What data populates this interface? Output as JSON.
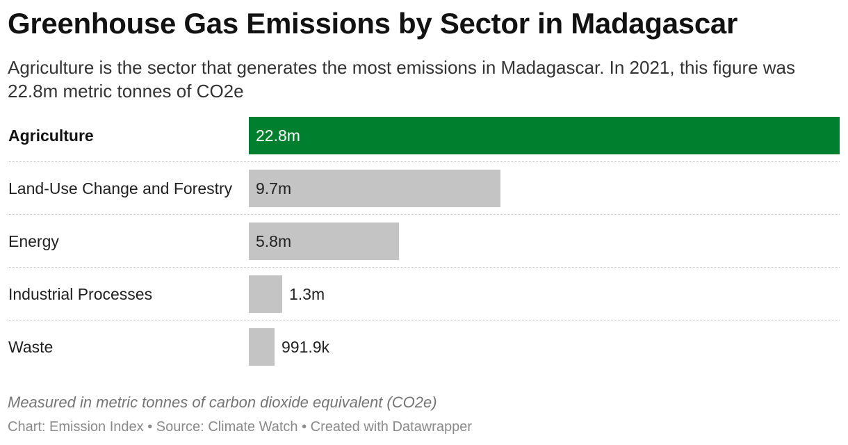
{
  "title": "Greenhouse Gas Emissions by Sector in Madagascar",
  "subtitle": "Agriculture is the sector that generates the most emissions in Madagascar. In 2021, this figure was 22.8m metric tonnes of CO2e",
  "note": "Measured in metric tonnes of carbon dioxide equivalent (CO2e)",
  "footer": "Chart: Emission Index • Source: Climate Watch • Created with Datawrapper",
  "colors": {
    "highlight": "#00802f",
    "default": "#c4c4c4",
    "label_on_highlight": "#ffffff",
    "label_default": "#222222"
  },
  "chart_data": {
    "type": "bar",
    "orientation": "horizontal",
    "categories": [
      "Agriculture",
      "Land-Use Change and Forestry",
      "Energy",
      "Industrial Processes",
      "Waste"
    ],
    "values": [
      22800000,
      9700000,
      5800000,
      1300000,
      991900
    ],
    "value_labels": [
      "22.8m",
      "9.7m",
      "5.8m",
      "1.3m",
      "991.9k"
    ],
    "highlight_index": 0,
    "xlim": [
      0,
      22800000
    ],
    "grid": false
  }
}
